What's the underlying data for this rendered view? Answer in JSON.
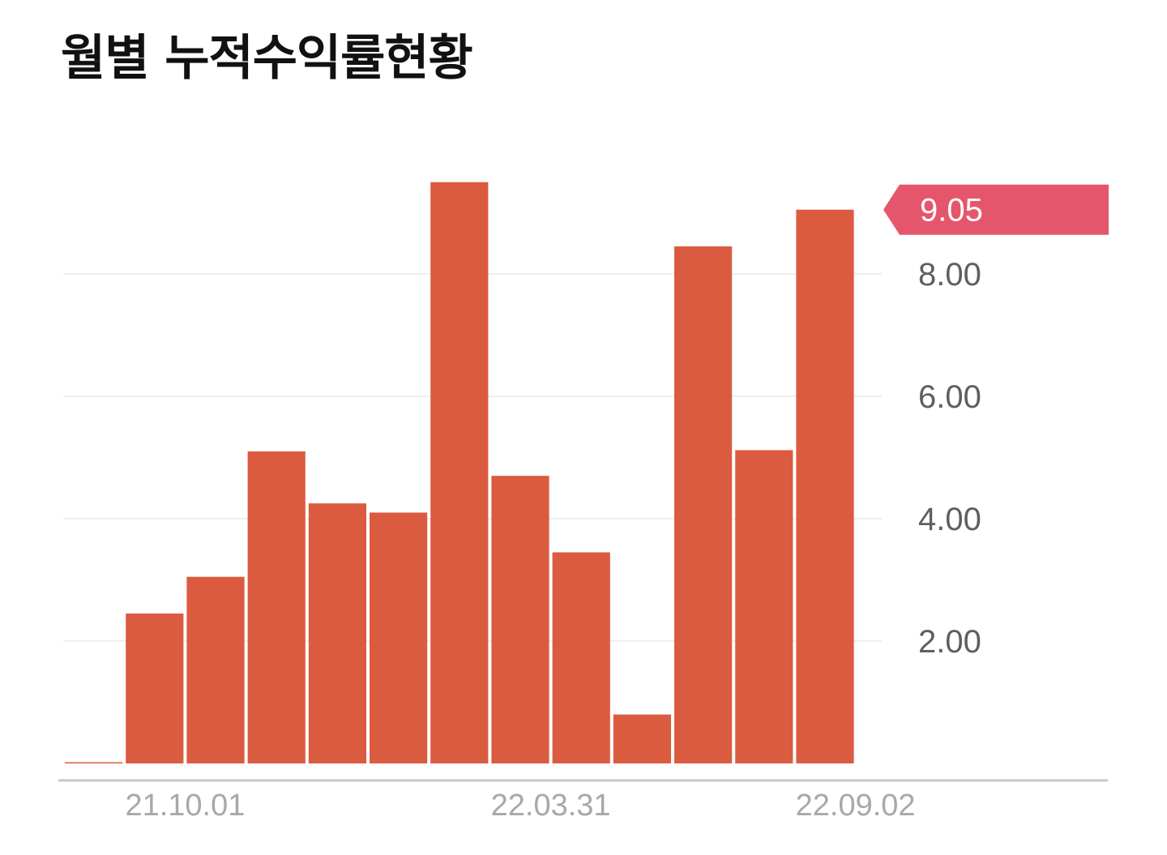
{
  "title": "월별 누적수익률현황",
  "chart_data": {
    "type": "bar",
    "title": "월별 누적수익률현황",
    "categories": [
      "21.10.01",
      "",
      "",
      "",
      "",
      "",
      "22.03.31",
      "",
      "",
      "",
      "",
      "22.09.02",
      ""
    ],
    "values": [
      0.0,
      2.45,
      3.05,
      5.1,
      4.25,
      4.1,
      9.5,
      4.7,
      3.45,
      0.8,
      8.45,
      5.12,
      9.05
    ],
    "x_tick_labels": [
      "21.10.01",
      "22.03.31",
      "22.09.02"
    ],
    "y_ticks": [
      2.0,
      4.0,
      6.0,
      8.0
    ],
    "y_tick_labels": [
      "2.00",
      "4.00",
      "6.00",
      "8.00"
    ],
    "ylim": [
      0,
      9.5
    ],
    "y_axis_position": "right",
    "grid": true,
    "last_value_label": "9.05",
    "colors": {
      "bar": "#db5b40",
      "flag": "#e5566c",
      "gridline": "#e8e8e8",
      "baseline": "#c8c8c8"
    }
  }
}
